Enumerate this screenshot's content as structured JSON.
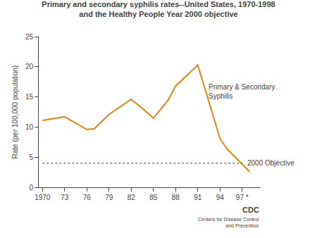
{
  "chart_data": {
    "type": "line",
    "title": "Primary and secondary syphilis rates--United States, 1970-1998",
    "subtitle": "and the Healthy People Year 2000 objective",
    "ylabel": "Rate (per 100,000 population)",
    "xlim": [
      1969.5,
      1999.5
    ],
    "xticks": [
      1970,
      {
        "value": 1973,
        "label": "73"
      },
      {
        "value": 1976,
        "label": "76"
      },
      {
        "value": 1979,
        "label": "79"
      },
      {
        "value": 1982,
        "label": "82"
      },
      {
        "value": 1985,
        "label": "85"
      },
      {
        "value": 1988,
        "label": "88"
      },
      {
        "value": 1991,
        "label": "91"
      },
      {
        "value": 1994,
        "label": "94"
      },
      {
        "value": 1997,
        "label": "97 *"
      }
    ],
    "ylim": [
      0,
      25
    ],
    "yticks": [
      0,
      5,
      10,
      15,
      20,
      25
    ],
    "grid": false,
    "series": [
      {
        "x": [
          1970,
          1973,
          1976,
          1977,
          1979,
          1982,
          1983,
          1985,
          1987,
          1988,
          1991,
          1994,
          1995,
          1997,
          1998
        ],
        "values": [
          11.1,
          11.7,
          9.6,
          9.7,
          12.1,
          14.6,
          13.6,
          11.5,
          14.5,
          16.8,
          20.3,
          8.1,
          6.3,
          3.8,
          2.6
        ],
        "color": "#e8820a",
        "line_style": "solid"
      },
      {
        "x": [
          1970,
          1997
        ],
        "values": [
          4.0,
          4.0
        ],
        "color": "#7878aa",
        "line_style": "dotted"
      }
    ],
    "annotations": [
      "Primary & Secondary\nSyphilis",
      "2000 Objective",
      "CDC",
      "Centers for Disease Control\nand Prevention"
    ]
  }
}
